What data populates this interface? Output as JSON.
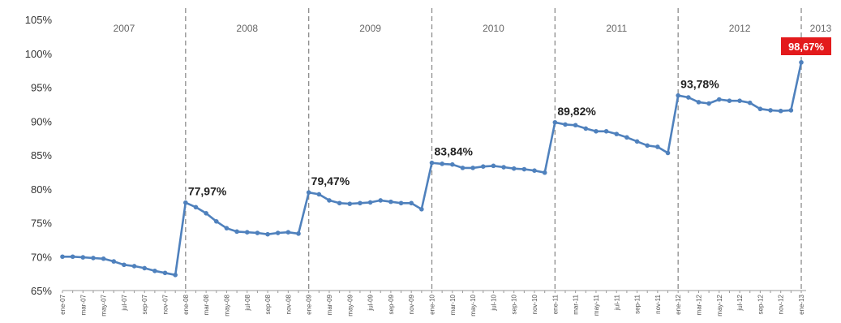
{
  "chart_data": {
    "type": "line",
    "title": "",
    "xlabel": "",
    "ylabel": "",
    "ylim": [
      65,
      105
    ],
    "yticks": [
      65,
      70,
      75,
      80,
      85,
      90,
      95,
      100,
      105
    ],
    "ytick_labels": [
      "65%",
      "70%",
      "75%",
      "80%",
      "85%",
      "90%",
      "95%",
      "100%",
      "105%"
    ],
    "grid": "none",
    "legend": "none",
    "line_color": "#4f81bd",
    "highlight_color": "#e31a1c",
    "x_labels": [
      "ene-07",
      "",
      "mar-07",
      "",
      "may-07",
      "",
      "jul-07",
      "",
      "sep-07",
      "",
      "nov-07",
      "",
      "ene-08",
      "",
      "mar-08",
      "",
      "may-08",
      "",
      "jul-08",
      "",
      "sep-08",
      "",
      "nov-08",
      "",
      "ene-09",
      "",
      "mar-09",
      "",
      "may-09",
      "",
      "jul-09",
      "",
      "sep-09",
      "",
      "nov-09",
      "",
      "ene-10",
      "",
      "mar-10",
      "",
      "may-10",
      "",
      "jul-10",
      "",
      "sep-10",
      "",
      "nov-10",
      "",
      "ene-11",
      "",
      "mar-11",
      "",
      "may-11",
      "",
      "jul-11",
      "",
      "sep-11",
      "",
      "nov-11",
      "",
      "ene-12",
      "",
      "mar-12",
      "",
      "may-12",
      "",
      "jul-12",
      "",
      "sep-12",
      "",
      "nov-12",
      "",
      "ene-13"
    ],
    "year_labels": [
      "2007",
      "2008",
      "2009",
      "2010",
      "2011",
      "2012",
      "2013"
    ],
    "series": [
      {
        "values": [
          70.0,
          70.0,
          69.9,
          69.8,
          69.7,
          69.3,
          68.8,
          68.6,
          68.3,
          67.9,
          67.6,
          67.3,
          77.97,
          77.3,
          76.4,
          75.2,
          74.2,
          73.7,
          73.6,
          73.5,
          73.3,
          73.5,
          73.6,
          73.4,
          79.47,
          79.2,
          78.3,
          77.9,
          77.8,
          77.9,
          78.0,
          78.3,
          78.1,
          77.9,
          77.9,
          77.0,
          83.84,
          83.7,
          83.6,
          83.1,
          83.1,
          83.3,
          83.4,
          83.2,
          83.0,
          82.9,
          82.7,
          82.4,
          89.82,
          89.5,
          89.4,
          88.9,
          88.5,
          88.5,
          88.1,
          87.6,
          87.0,
          86.4,
          86.2,
          85.3,
          93.78,
          93.5,
          92.8,
          92.6,
          93.2,
          93.0,
          93.0,
          92.7,
          91.8,
          91.6,
          91.5,
          91.6,
          98.67
        ]
      }
    ],
    "annotations": [
      {
        "index": 12,
        "text": "77,97%"
      },
      {
        "index": 24,
        "text": "79,47%"
      },
      {
        "index": 36,
        "text": "83,84%"
      },
      {
        "index": 48,
        "text": "89,82%"
      },
      {
        "index": 60,
        "text": "93,78%"
      },
      {
        "index": 72,
        "text": "98,67%",
        "highlight": true
      }
    ]
  }
}
